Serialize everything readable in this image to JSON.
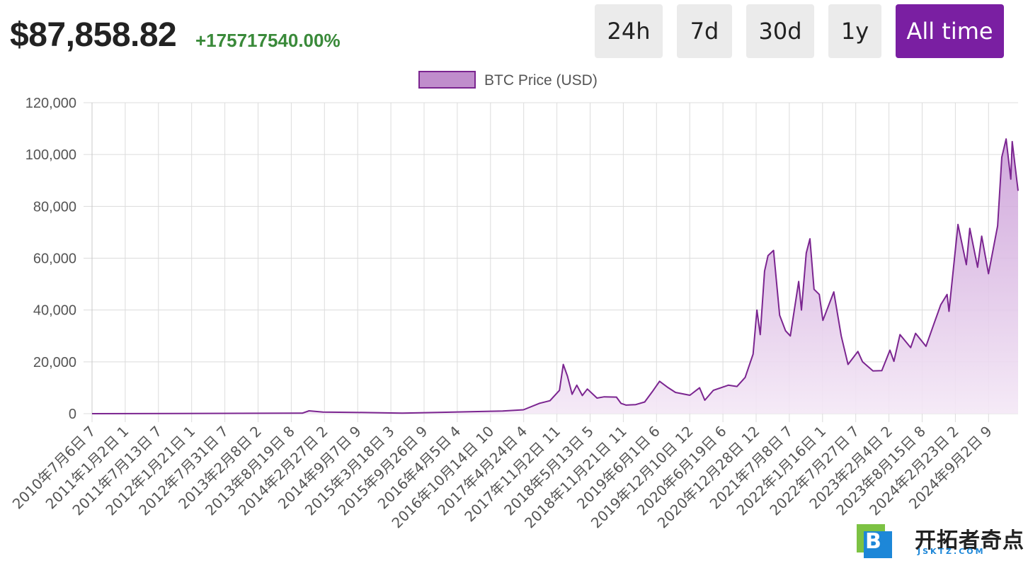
{
  "header": {
    "price": "$87,858.82",
    "change": "+175717540.00%"
  },
  "range_buttons": [
    {
      "label": "24h",
      "active": false
    },
    {
      "label": "7d",
      "active": false
    },
    {
      "label": "30d",
      "active": false
    },
    {
      "label": "1y",
      "active": false
    },
    {
      "label": "All time",
      "active": true
    }
  ],
  "colors": {
    "accent": "#7a1fa2",
    "line": "#7b2590",
    "legend_fill": "#c08dcc",
    "area_top": "#c99ad6",
    "area_bottom": "#f4e8f6",
    "change_positive": "#3a8a3a",
    "grid": "#dcdcdc",
    "tick": "#555555"
  },
  "chart_data": {
    "type": "area",
    "title": "",
    "xlabel": "",
    "ylabel": "",
    "legend": "BTC Price (USD)",
    "legend_position": "top-center",
    "grid": true,
    "ylim": [
      0,
      120000
    ],
    "yticks": [
      "0",
      "20,000",
      "40,000",
      "60,000",
      "80,000",
      "100,000",
      "120,000"
    ],
    "xticks": [
      "2010年7月6日 7",
      "2011年1月2日 1",
      "2011年7月13日 7",
      "2012年1月21日 1",
      "2012年7月31日 7",
      "2013年2月8日 2",
      "2013年8月19日 8",
      "2014年2月27日 2",
      "2014年9月7日 9",
      "2015年3月18日 3",
      "2015年9月26日 9",
      "2016年4月5日 4",
      "2016年10月14日 10",
      "2017年4月24日 4",
      "2017年11月2日 11",
      "2018年5月13日 5",
      "2018年11月21日 11",
      "2019年6月1日 6",
      "2019年12月10日 12",
      "2020年6月19日 6",
      "2020年12月28日 12",
      "2021年7月8日 7",
      "2022年1月16日 1",
      "2022年7月27日 7",
      "2023年2月4日 2",
      "2023年8月15日 8",
      "2024年2月23日 2",
      "2024年9月2日 9"
    ],
    "series": [
      {
        "name": "BTC Price (USD)",
        "x": [
          "2010-07-06",
          "2013-11-01",
          "2013-12-10",
          "2014-03-01",
          "2014-09-01",
          "2015-06-01",
          "2016-06-01",
          "2017-01-01",
          "2017-05-01",
          "2017-08-01",
          "2017-10-01",
          "2017-11-25",
          "2017-12-17",
          "2018-01-10",
          "2018-02-06",
          "2018-03-05",
          "2018-04-06",
          "2018-05-05",
          "2018-06-30",
          "2018-08-10",
          "2018-10-20",
          "2018-11-15",
          "2018-12-15",
          "2019-02-08",
          "2019-04-01",
          "2019-05-15",
          "2019-06-26",
          "2019-08-15",
          "2019-09-26",
          "2019-12-18",
          "2020-02-12",
          "2020-03-13",
          "2020-05-01",
          "2020-07-27",
          "2020-09-15",
          "2020-11-01",
          "2020-12-17",
          "2021-01-08",
          "2021-01-27",
          "2021-02-21",
          "2021-03-13",
          "2021-04-14",
          "2021-05-19",
          "2021-06-22",
          "2021-07-20",
          "2021-09-06",
          "2021-09-22",
          "2021-10-20",
          "2021-11-10",
          "2021-12-04",
          "2022-01-03",
          "2022-01-24",
          "2022-03-28",
          "2022-05-10",
          "2022-06-18",
          "2022-08-14",
          "2022-09-10",
          "2022-11-09",
          "2022-12-30",
          "2023-02-15",
          "2023-03-10",
          "2023-04-14",
          "2023-06-15",
          "2023-07-13",
          "2023-09-11",
          "2023-10-26",
          "2023-12-05",
          "2024-01-11",
          "2024-01-22",
          "2024-03-14",
          "2024-05-01",
          "2024-05-21",
          "2024-07-05",
          "2024-07-29",
          "2024-09-06",
          "2024-10-29",
          "2024-11-22",
          "2024-12-17",
          "2025-01-13",
          "2025-01-21",
          "2025-02-24"
        ],
        "values": [
          0,
          200,
          1100,
          600,
          480,
          230,
          700,
          1000,
          1500,
          4000,
          5000,
          9000,
          19000,
          14500,
          7500,
          11000,
          7000,
          9500,
          6000,
          6500,
          6400,
          4000,
          3300,
          3500,
          4500,
          8500,
          12500,
          10000,
          8200,
          7100,
          10000,
          5200,
          9000,
          11000,
          10500,
          14000,
          23000,
          40000,
          30500,
          55000,
          61000,
          63000,
          38000,
          32000,
          30000,
          51000,
          40000,
          62000,
          67500,
          48000,
          46000,
          36000,
          47000,
          30000,
          19000,
          24000,
          20000,
          16500,
          16600,
          24500,
          20200,
          30500,
          25500,
          31000,
          26000,
          34500,
          42000,
          46000,
          39500,
          73000,
          57500,
          71500,
          56500,
          68500,
          54000,
          72500,
          99000,
          106000,
          90500,
          105000,
          86000
        ]
      }
    ]
  },
  "watermark": {
    "logo_letter": "B",
    "text": "开拓者奇点",
    "subtext": "JSKTZ.COM"
  }
}
